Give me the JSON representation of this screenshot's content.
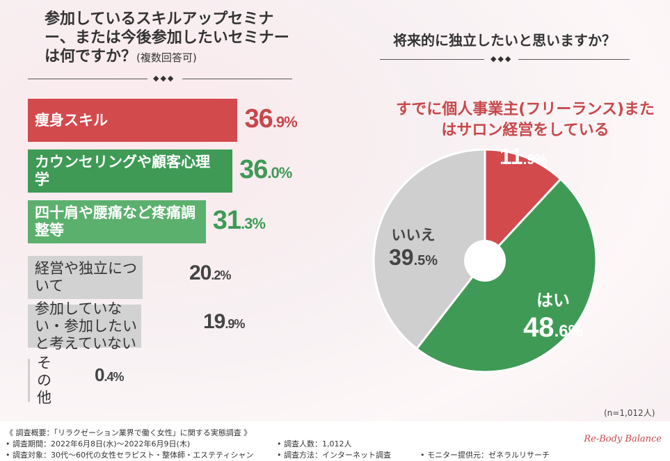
{
  "left_chart": {
    "title_main": "参加しているスキルアップセミナー、または今後参加したいセミナーは何ですか？",
    "title_note": "(複数回答可)",
    "diamonds": "◆◆◆"
  },
  "right_chart": {
    "title": "将来的に独立したいと思いますか？",
    "diamonds": "◆◆◆",
    "callout": "すでに個人事業主(フリーランス)またはサロン経営をしている"
  },
  "chart_data": [
    {
      "type": "bar",
      "orientation": "horizontal",
      "title": "参加しているスキルアップセミナー、または今後参加したいセミナーは何ですか？(複数回答可)",
      "categories": [
        "痩身スキル",
        "カウンセリングや顧客心理学",
        "四十肩や腰痛など疼痛調整等",
        "経営や独立について",
        "参加していない・参加したいと考えていない",
        "その他"
      ],
      "values": [
        36.9,
        36.0,
        31.3,
        20.2,
        19.9,
        0.4
      ],
      "value_labels": [
        [
          "36",
          ".9%"
        ],
        [
          "36",
          ".0%"
        ],
        [
          "31",
          ".3%"
        ],
        [
          "20",
          ".2%"
        ],
        [
          "19",
          ".9%"
        ],
        [
          "0",
          ".4%"
        ]
      ],
      "colors": [
        "#d34a4d",
        "#3f9a56",
        "#5bb06e",
        "#d2d2d2",
        "#d2d2d2",
        "#d2d2d2"
      ],
      "unit": "%"
    },
    {
      "type": "pie",
      "style": "donut",
      "title": "将来的に独立したいと思いますか？",
      "slices": [
        {
          "label": "",
          "value": 11.9,
          "value_label": [
            "11",
            ".9%"
          ],
          "color": "#d34a4d"
        },
        {
          "label": "はい",
          "value": 48.6,
          "value_label": [
            "48",
            ".6%"
          ],
          "color": "#3f9a56"
        },
        {
          "label": "いいえ",
          "value": 39.5,
          "value_label": [
            "39",
            ".5%"
          ],
          "color": "#cfcfcf"
        }
      ],
      "note": "(n=1,012人)"
    }
  ],
  "footer": {
    "overview": "《 調査概要：「リラクゼーション業界で働く女性」に関する実態調査 》",
    "period": "• 調査期間：2022年6月8日(水)～2022年6月9日(木)",
    "target": "• 調査対象：30代～60代の女性セラピスト・整体師・エステティシャン",
    "count": "• 調査人数：1,012人",
    "method": "• 調査方法：インターネット調査",
    "provider": "• モニター提供元：ゼネラルリサーチ",
    "logo": "Re-Body Balance"
  }
}
